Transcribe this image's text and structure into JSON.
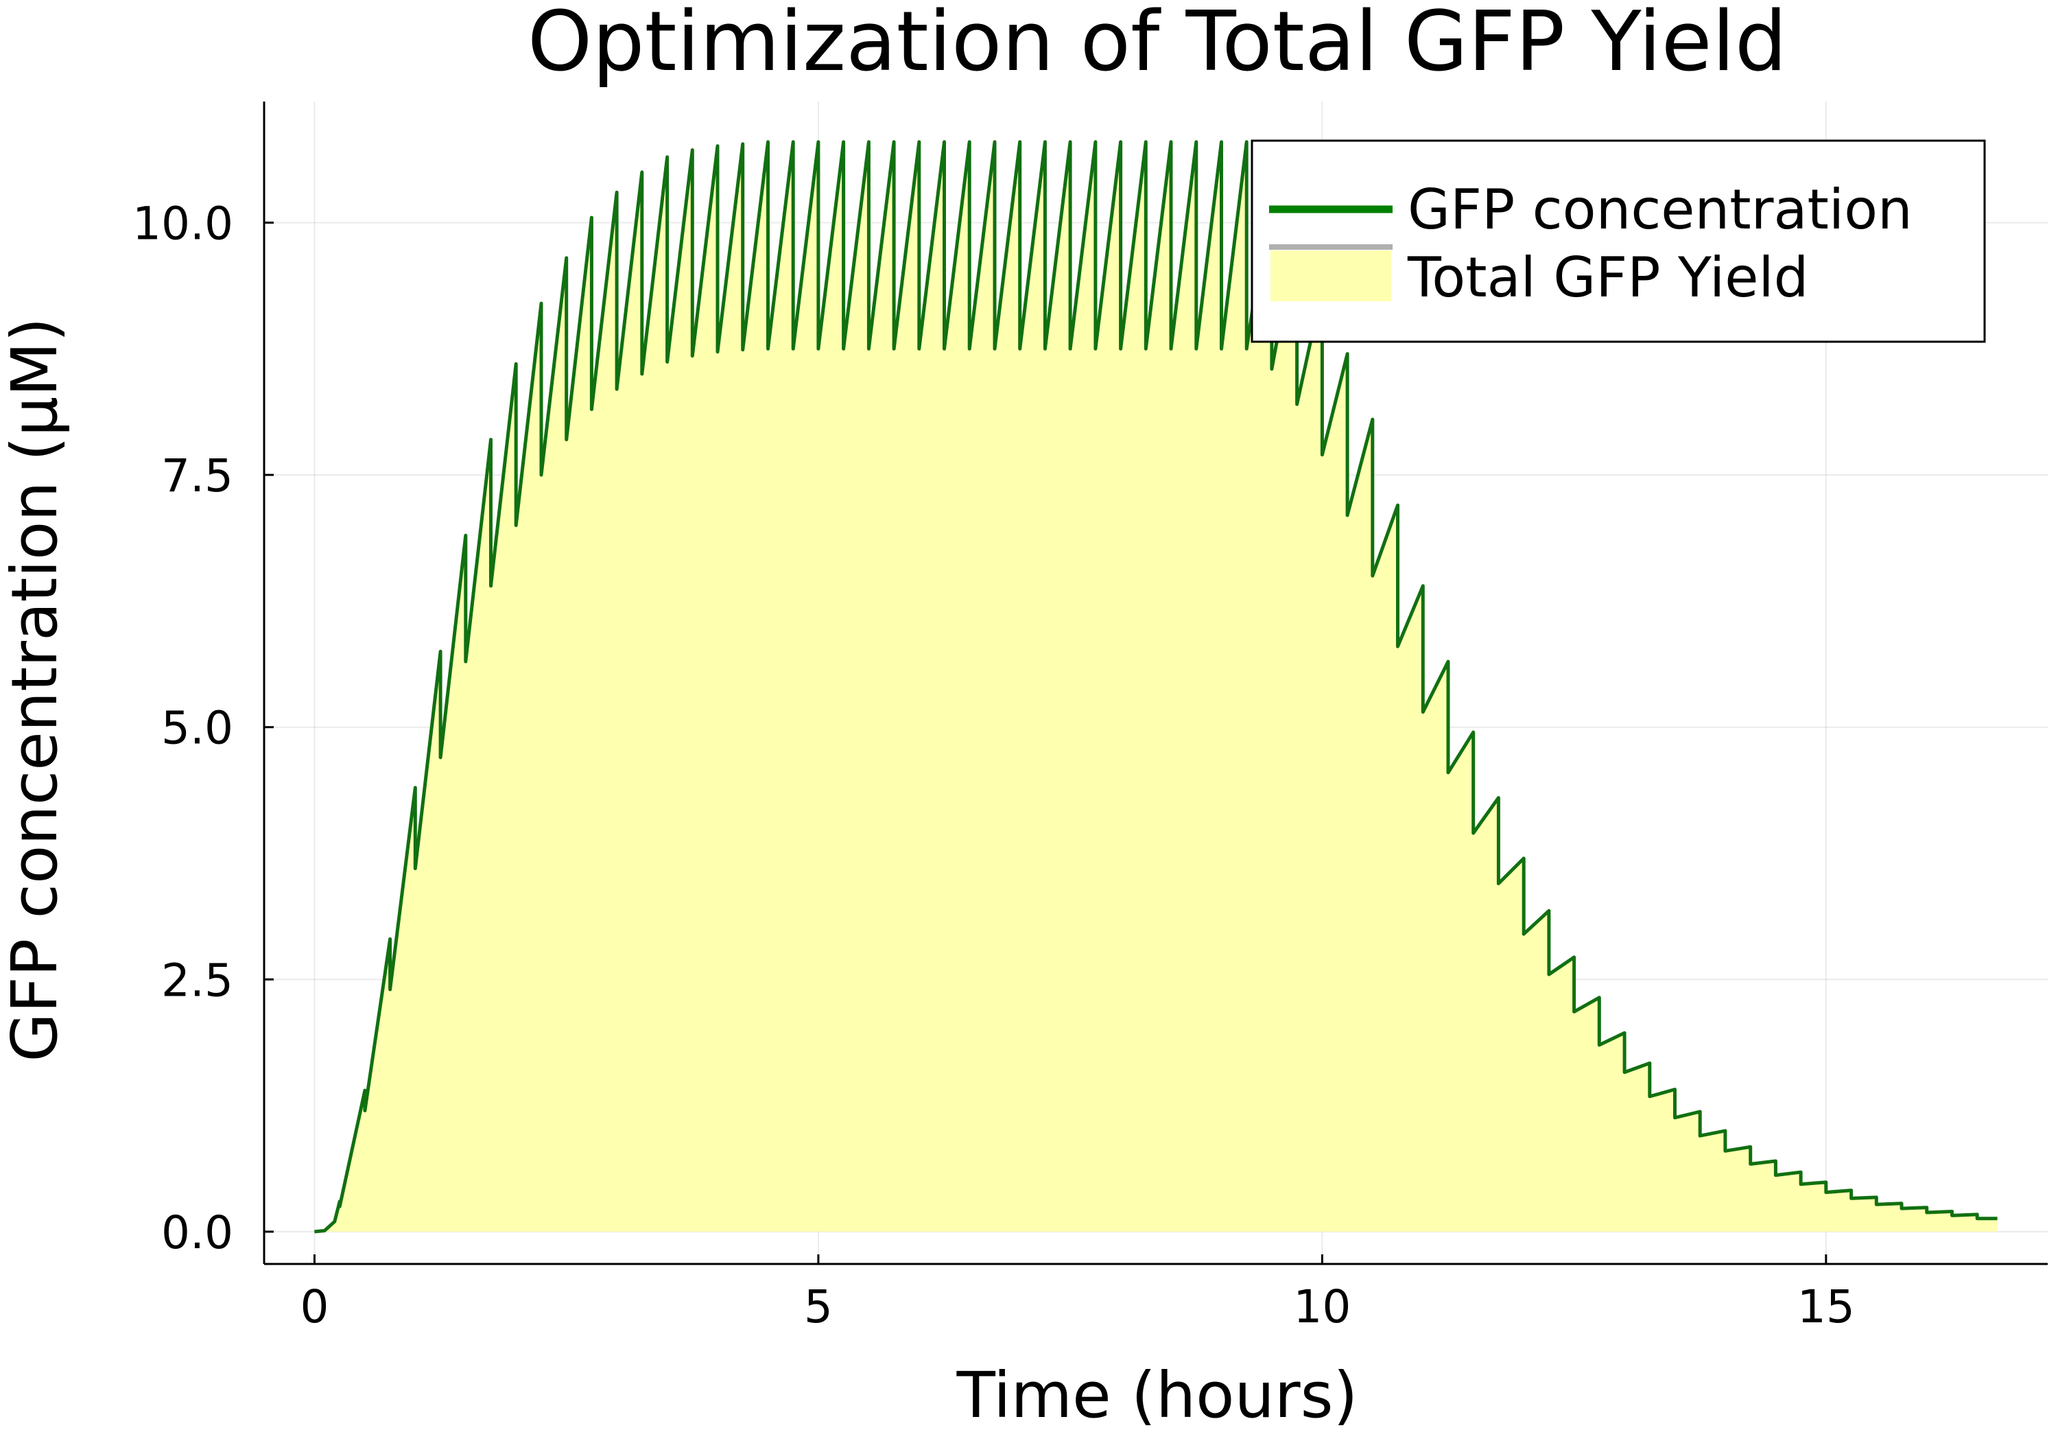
{
  "chart_data": {
    "type": "line",
    "title": "Optimization of Total GFP Yield",
    "xlabel": "Time (hours)",
    "ylabel": "GFP concentration (μM)",
    "xlim": [
      -0.5,
      17.2
    ],
    "ylim": [
      -0.32,
      11.2
    ],
    "xticks": [
      0,
      5,
      10,
      15
    ],
    "yticks": [
      0.0,
      2.5,
      5.0,
      7.5,
      10.0
    ],
    "xtick_labels": [
      "0",
      "5",
      "10",
      "15"
    ],
    "ytick_labels": [
      "0.0",
      "2.5",
      "5.0",
      "7.5",
      "10.0"
    ],
    "grid": true,
    "legend_position": "top-right",
    "legend": [
      {
        "label": "GFP concentration",
        "kind": "line",
        "color": "#008000"
      },
      {
        "label": "Total GFP Yield",
        "kind": "line",
        "color": "#b0b0b0"
      },
      {
        "label": "",
        "kind": "fill",
        "color": "#ffffb0"
      }
    ],
    "colors": {
      "line": "#117011",
      "fill": "#ffffb0"
    },
    "series": [
      {
        "name": "GFP concentration",
        "points": [
          [
            0.0,
            0.0
          ],
          [
            0.1,
            0.01
          ],
          [
            0.2,
            0.1
          ],
          [
            0.25,
            0.3
          ],
          [
            0.25,
            0.25
          ],
          [
            0.5,
            1.4
          ],
          [
            0.5,
            1.2
          ],
          [
            0.75,
            2.9
          ],
          [
            0.75,
            2.4
          ],
          [
            1.0,
            4.4
          ],
          [
            1.0,
            3.6
          ],
          [
            1.25,
            5.75
          ],
          [
            1.25,
            4.7
          ],
          [
            1.5,
            6.9
          ],
          [
            1.5,
            5.65
          ],
          [
            1.75,
            7.85
          ],
          [
            1.75,
            6.4
          ],
          [
            2.0,
            8.6
          ],
          [
            2.0,
            7.0
          ],
          [
            2.25,
            9.2
          ],
          [
            2.25,
            7.5
          ],
          [
            2.5,
            9.65
          ],
          [
            2.5,
            7.85
          ],
          [
            2.75,
            10.05
          ],
          [
            2.75,
            8.15
          ],
          [
            3.0,
            10.3
          ],
          [
            3.0,
            8.35
          ],
          [
            3.25,
            10.5
          ],
          [
            3.25,
            8.5
          ],
          [
            3.5,
            10.65
          ],
          [
            3.5,
            8.62
          ],
          [
            3.75,
            10.72
          ],
          [
            3.75,
            8.68
          ],
          [
            4.0,
            10.76
          ],
          [
            4.0,
            8.72
          ],
          [
            4.25,
            10.78
          ],
          [
            4.25,
            8.74
          ],
          [
            4.5,
            10.8
          ],
          [
            4.5,
            8.75
          ],
          [
            4.75,
            10.8
          ],
          [
            4.75,
            8.75
          ],
          [
            5.0,
            10.8
          ],
          [
            5.0,
            8.75
          ],
          [
            5.25,
            10.8
          ],
          [
            5.25,
            8.75
          ],
          [
            5.5,
            10.8
          ],
          [
            5.5,
            8.75
          ],
          [
            5.75,
            10.8
          ],
          [
            5.75,
            8.75
          ],
          [
            6.0,
            10.8
          ],
          [
            6.0,
            8.75
          ],
          [
            6.25,
            10.8
          ],
          [
            6.25,
            8.75
          ],
          [
            6.5,
            10.8
          ],
          [
            6.5,
            8.75
          ],
          [
            6.75,
            10.8
          ],
          [
            6.75,
            8.75
          ],
          [
            7.0,
            10.8
          ],
          [
            7.0,
            8.75
          ],
          [
            7.25,
            10.8
          ],
          [
            7.25,
            8.75
          ],
          [
            7.5,
            10.8
          ],
          [
            7.5,
            8.75
          ],
          [
            7.75,
            10.8
          ],
          [
            7.75,
            8.75
          ],
          [
            8.0,
            10.8
          ],
          [
            8.0,
            8.75
          ],
          [
            8.25,
            10.8
          ],
          [
            8.25,
            8.75
          ],
          [
            8.5,
            10.8
          ],
          [
            8.5,
            8.75
          ],
          [
            8.75,
            10.8
          ],
          [
            8.75,
            8.75
          ],
          [
            9.0,
            10.8
          ],
          [
            9.0,
            8.75
          ],
          [
            9.25,
            10.8
          ],
          [
            9.25,
            8.75
          ],
          [
            9.5,
            10.4
          ],
          [
            9.5,
            8.55
          ],
          [
            9.75,
            9.9
          ],
          [
            9.75,
            8.2
          ],
          [
            10.0,
            9.35
          ],
          [
            10.0,
            7.7
          ],
          [
            10.25,
            8.7
          ],
          [
            10.25,
            7.1
          ],
          [
            10.5,
            8.05
          ],
          [
            10.5,
            6.5
          ],
          [
            10.75,
            7.2
          ],
          [
            10.75,
            5.8
          ],
          [
            11.0,
            6.4
          ],
          [
            11.0,
            5.15
          ],
          [
            11.25,
            5.65
          ],
          [
            11.25,
            4.55
          ],
          [
            11.5,
            4.95
          ],
          [
            11.5,
            3.95
          ],
          [
            11.75,
            4.3
          ],
          [
            11.75,
            3.45
          ],
          [
            12.0,
            3.7
          ],
          [
            12.0,
            2.95
          ],
          [
            12.25,
            3.18
          ],
          [
            12.25,
            2.55
          ],
          [
            12.5,
            2.72
          ],
          [
            12.5,
            2.18
          ],
          [
            12.75,
            2.32
          ],
          [
            12.75,
            1.85
          ],
          [
            13.0,
            1.97
          ],
          [
            13.0,
            1.58
          ],
          [
            13.25,
            1.67
          ],
          [
            13.25,
            1.34
          ],
          [
            13.5,
            1.41
          ],
          [
            13.5,
            1.13
          ],
          [
            13.75,
            1.19
          ],
          [
            13.75,
            0.95
          ],
          [
            14.0,
            1.0
          ],
          [
            14.0,
            0.8
          ],
          [
            14.25,
            0.84
          ],
          [
            14.25,
            0.67
          ],
          [
            14.5,
            0.7
          ],
          [
            14.5,
            0.56
          ],
          [
            14.75,
            0.59
          ],
          [
            14.75,
            0.47
          ],
          [
            15.0,
            0.49
          ],
          [
            15.0,
            0.39
          ],
          [
            15.25,
            0.41
          ],
          [
            15.25,
            0.33
          ],
          [
            15.5,
            0.34
          ],
          [
            15.5,
            0.27
          ],
          [
            15.75,
            0.28
          ],
          [
            15.75,
            0.23
          ],
          [
            16.0,
            0.24
          ],
          [
            16.0,
            0.19
          ],
          [
            16.25,
            0.2
          ],
          [
            16.25,
            0.16
          ],
          [
            16.5,
            0.17
          ],
          [
            16.5,
            0.13
          ],
          [
            16.7,
            0.13
          ]
        ]
      }
    ]
  }
}
